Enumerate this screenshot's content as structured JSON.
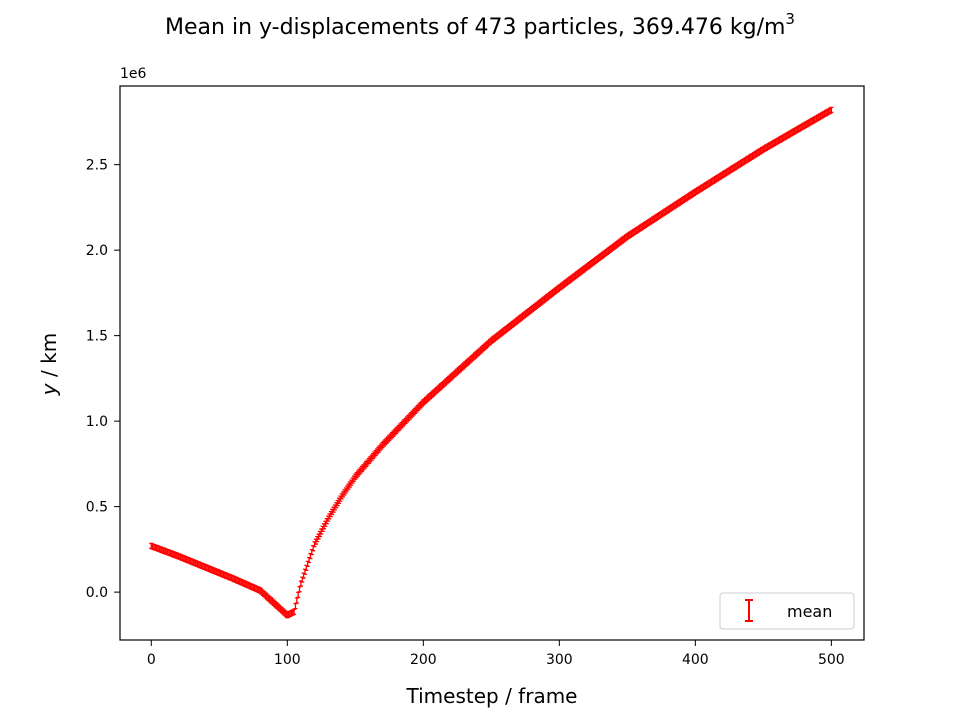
{
  "chart_data": {
    "type": "scatter",
    "title": "Mean in y-displacements of 473 particles, 369.476 kg/m",
    "title_superscript": "3",
    "xlabel": "Timestep / frame",
    "ylabel_italic": "y",
    "ylabel_rest": " / km",
    "y_offset_label": "1e6",
    "xlim": [
      -23,
      524
    ],
    "ylim": [
      -280000,
      2960000
    ],
    "x_ticks": [
      0,
      100,
      200,
      300,
      400,
      500
    ],
    "x_tick_labels": [
      "0",
      "100",
      "200",
      "300",
      "400",
      "500"
    ],
    "y_ticks": [
      0,
      500000,
      1000000,
      1500000,
      2000000,
      2500000
    ],
    "y_tick_labels": [
      "0.0",
      "0.5",
      "1.0",
      "1.5",
      "2.0",
      "2.5"
    ],
    "grid": false,
    "legend_position": "lower-right",
    "series": [
      {
        "name": "mean",
        "color": "#ff0000",
        "marker": "errorbar",
        "x_start": 0,
        "x_end": 500,
        "key_points": [
          [
            0,
            270000
          ],
          [
            20,
            210000
          ],
          [
            40,
            145000
          ],
          [
            60,
            80000
          ],
          [
            80,
            10000
          ],
          [
            100,
            -135000
          ],
          [
            105,
            -115000
          ],
          [
            110,
            50000
          ],
          [
            120,
            280000
          ],
          [
            130,
            430000
          ],
          [
            140,
            560000
          ],
          [
            150,
            675000
          ],
          [
            170,
            860000
          ],
          [
            200,
            1110000
          ],
          [
            250,
            1470000
          ],
          [
            300,
            1780000
          ],
          [
            350,
            2080000
          ],
          [
            400,
            2340000
          ],
          [
            450,
            2590000
          ],
          [
            500,
            2820000
          ]
        ]
      }
    ]
  }
}
